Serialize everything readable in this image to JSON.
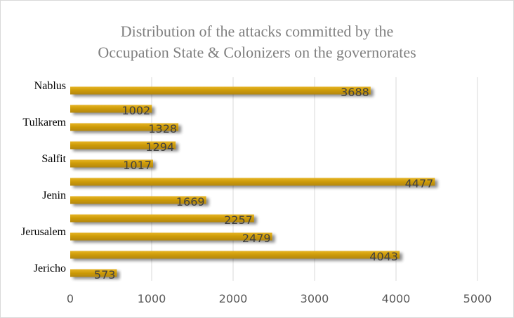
{
  "chart_data": {
    "type": "bar",
    "orientation": "horizontal",
    "title_lines": [
      "Distribution of the attacks committed by the",
      "Occupation State & Colonizers on the governorates"
    ],
    "categories": [
      "Nablus",
      "",
      "Tulkarem",
      "",
      "Salfit",
      "",
      "Jenin",
      "",
      "Jerusalem",
      "",
      "Jericho"
    ],
    "values": [
      3688,
      1002,
      1328,
      1294,
      1017,
      4477,
      1669,
      2257,
      2479,
      4043,
      573
    ],
    "xlim": [
      0,
      5000
    ],
    "xticks": [
      0,
      1000,
      2000,
      3000,
      4000,
      5000
    ],
    "grid": true,
    "legend": "none",
    "bar_color": "#cc9a06",
    "bar_highlight_color": "#e6b425",
    "grid_color": "#d9d9d9"
  }
}
